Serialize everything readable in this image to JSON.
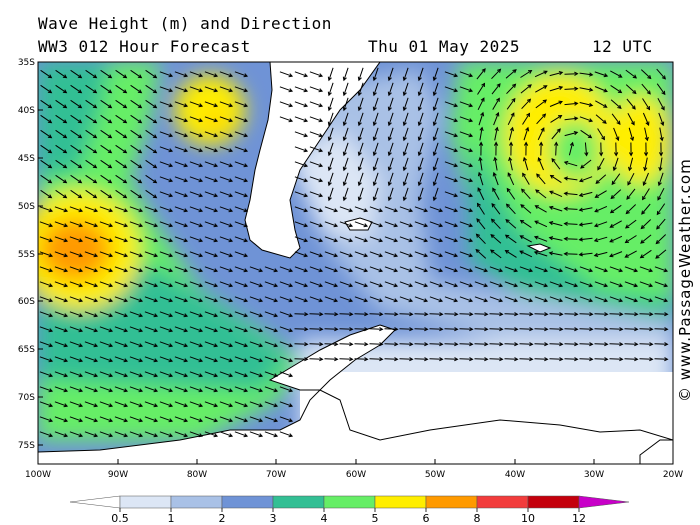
{
  "title": {
    "line1": "Wave Height (m) and Direction",
    "line2": "WW3 012 Hour Forecast",
    "date": "Thu 01 May 2025",
    "time": "12 UTC"
  },
  "credit": "© www.PassageWeather.com",
  "map": {
    "lat_labels": [
      "35S",
      "40S",
      "45S",
      "50S",
      "55S",
      "60S",
      "65S",
      "70S",
      "75S"
    ],
    "lon_labels": [
      "100W",
      "90W",
      "80W",
      "70W",
      "60W",
      "50W",
      "40W",
      "30W",
      "20W"
    ],
    "lat_range": [
      -35,
      -77.5
    ],
    "lon_range": [
      -100,
      -20
    ]
  },
  "legend": {
    "labels": [
      "0.5",
      "1",
      "2",
      "3",
      "4",
      "5",
      "6",
      "8",
      "10",
      "12"
    ],
    "colors": [
      "#ffffff",
      "#dce6f5",
      "#a9c1e6",
      "#6f93d6",
      "#33bf94",
      "#66ee66",
      "#ffee00",
      "#ff9a00",
      "#f23c3c",
      "#c4000c",
      "#c800c8"
    ]
  }
}
